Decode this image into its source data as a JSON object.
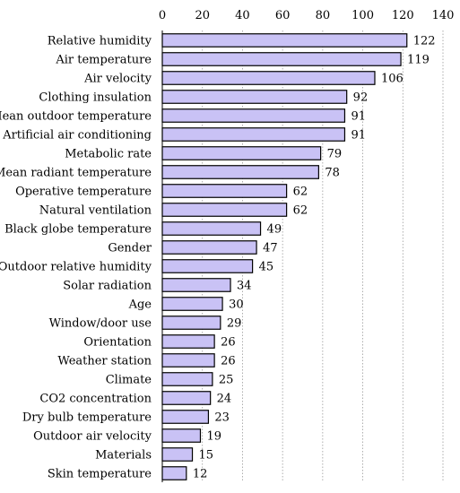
{
  "chart_data": {
    "type": "bar",
    "orientation": "horizontal",
    "title": "",
    "xlabel": "",
    "ylabel": "",
    "xlim": [
      0,
      140
    ],
    "xticks": [
      0,
      20,
      40,
      60,
      80,
      100,
      120,
      140
    ],
    "grid": true,
    "legend": "none",
    "bar_color": "#c9c2f5",
    "categories": [
      "Relative humidity",
      "Air  temperature",
      "Air velocity",
      "Clothing insulation",
      "Mean outdoor temperature",
      "Artificial air conditioning",
      "Metabolic rate",
      "Mean radiant temperature",
      "Operative temperature",
      "Natural ventilation",
      "Black globe temperature",
      "Gender",
      "Outdoor relative humidity",
      "Solar radiation",
      "Age",
      "Window/door use",
      "Orientation",
      "Weather station",
      "Climate",
      "CO2 concentration",
      "Dry bulb temperature",
      "Outdoor air velocity",
      "Materials",
      "Skin temperature"
    ],
    "values": [
      122,
      119,
      106,
      92,
      91,
      91,
      79,
      78,
      62,
      62,
      49,
      47,
      45,
      34,
      30,
      29,
      26,
      26,
      25,
      24,
      23,
      19,
      15,
      12
    ]
  }
}
